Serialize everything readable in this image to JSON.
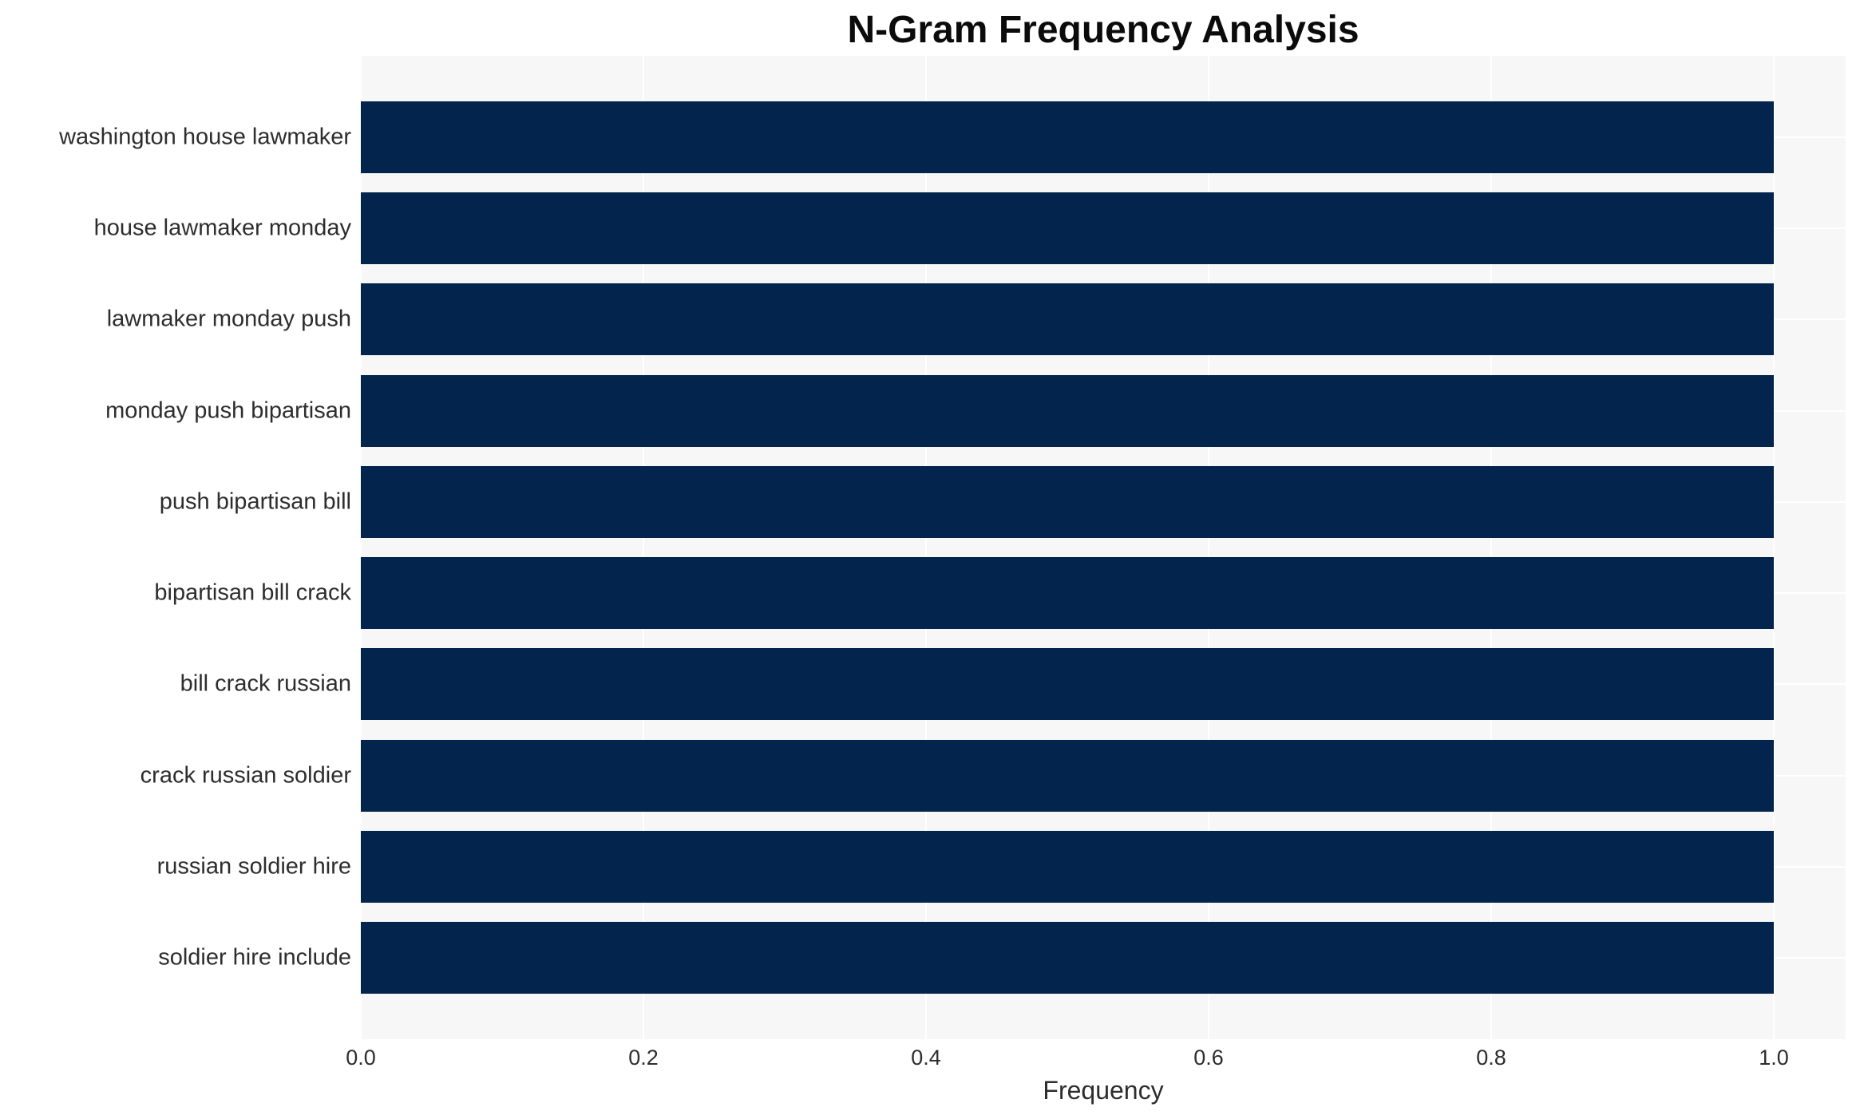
{
  "title": "N-Gram Frequency Analysis",
  "xlabel": "Frequency",
  "chart_data": {
    "type": "bar",
    "orientation": "horizontal",
    "title": "N-Gram Frequency Analysis",
    "xlabel": "Frequency",
    "ylabel": "",
    "categories": [
      "washington house lawmaker",
      "house lawmaker monday",
      "lawmaker monday push",
      "monday push bipartisan",
      "push bipartisan bill",
      "bipartisan bill crack",
      "bill crack russian",
      "crack russian soldier",
      "russian soldier hire",
      "soldier hire include"
    ],
    "values": [
      1.0,
      1.0,
      1.0,
      1.0,
      1.0,
      1.0,
      1.0,
      1.0,
      1.0,
      1.0
    ],
    "xlim": [
      0.0,
      1.05
    ],
    "xticks": [
      0.0,
      0.2,
      0.4,
      0.6,
      0.8,
      1.0
    ],
    "xtick_labels": [
      "0.0",
      "0.2",
      "0.4",
      "0.6",
      "0.8",
      "1.0"
    ],
    "grid": true,
    "legend": null,
    "colors": {
      "bar": "#02244d",
      "plot_background": "#f7f7f7",
      "figure_background": "#ffffff",
      "gridline": "#ffffff",
      "tick_text": "#2d2d2d",
      "title_text": "#0b0b0b"
    }
  }
}
